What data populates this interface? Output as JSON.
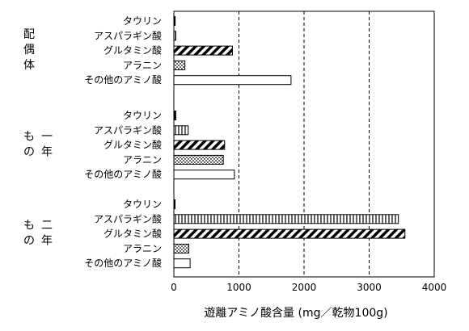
{
  "chart_data": {
    "type": "bar",
    "orientation": "horizontal",
    "xlabel": "遊離アミノ酸含量 (mg／乾物100g)",
    "xlim": [
      0,
      4000
    ],
    "xticks": [
      0,
      1000,
      2000,
      3000,
      4000
    ],
    "xtick_labels": [
      "0",
      "1000",
      "2000",
      "3000",
      "4000"
    ],
    "grid": "vertical dashed lines at 1000, 2000, 3000",
    "categories": [
      "タウリン",
      "アスパラギン酸",
      "グルタミン酸",
      "アラニン",
      "その他のアミノ酸"
    ],
    "category_patterns": [
      "solid-black",
      "vertical-stripes",
      "diagonal-hatch",
      "dots",
      "white"
    ],
    "groups": [
      {
        "name": "配偶体",
        "values": [
          20,
          30,
          900,
          170,
          1800
        ]
      },
      {
        "name": "一年もの",
        "values": [
          30,
          220,
          780,
          760,
          930
        ]
      },
      {
        "name": "二年もの",
        "values": [
          5,
          3450,
          3550,
          230,
          250
        ]
      }
    ]
  }
}
